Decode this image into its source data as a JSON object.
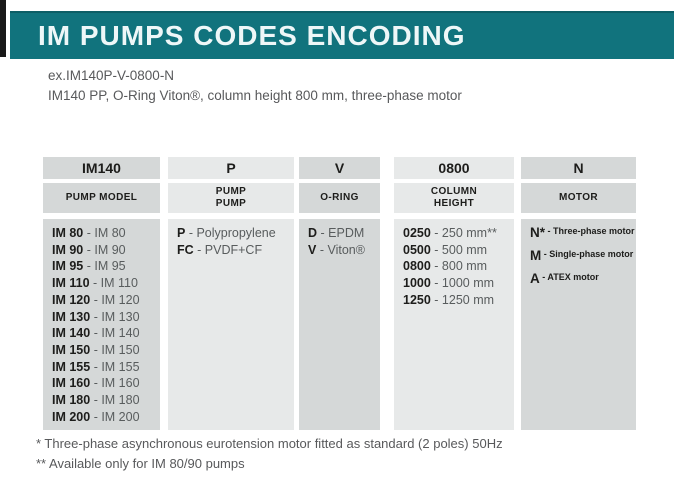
{
  "colors": {
    "banner": "#11737d",
    "banner-text": "#eef7f8",
    "col-dark": "#d5d8d8",
    "col-light": "#e7e9e9",
    "code-text": "#1d1d1b",
    "value-text": "#585c5d",
    "muted-text": "#58595b",
    "edge-bar": "#191919"
  },
  "header": {
    "title": "IM PUMPS CODES ENCODING"
  },
  "example": {
    "code": "ex.IM140P-V-0800-N",
    "description": "IM140 PP, O-Ring Viton®, column height 800 mm, three-phase motor"
  },
  "table": {
    "separator": " - ",
    "columns": [
      {
        "code": "IM140",
        "header_line1": "PUMP MODEL",
        "header_line2": "",
        "entries": [
          {
            "code": "IM 80",
            "value": "IM 80"
          },
          {
            "code": "IM 90",
            "value": "IM 90"
          },
          {
            "code": "IM 95",
            "value": "IM 95"
          },
          {
            "code": "IM 110",
            "value": "IM 110"
          },
          {
            "code": "IM 120",
            "value": "IM 120"
          },
          {
            "code": "IM 130",
            "value": "IM 130"
          },
          {
            "code": "IM 140",
            "value": "IM 140"
          },
          {
            "code": "IM 150",
            "value": "IM 150"
          },
          {
            "code": "IM 155",
            "value": "IM 155"
          },
          {
            "code": "IM 160",
            "value": "IM 160"
          },
          {
            "code": "IM 180",
            "value": "IM 180"
          },
          {
            "code": "IM 200",
            "value": "IM 200"
          }
        ]
      },
      {
        "code": "P",
        "header_line1": "PUMP",
        "header_line2": "PUMP",
        "entries": [
          {
            "code": "P",
            "value": "Polypropylene"
          },
          {
            "code": "FC",
            "value": "PVDF+CF"
          }
        ]
      },
      {
        "code": "V",
        "header_line1": "O-RING",
        "header_line2": "",
        "entries": [
          {
            "code": "D",
            "value": "EPDM"
          },
          {
            "code": "V",
            "value": "Viton®"
          }
        ]
      },
      {
        "code": "0800",
        "header_line1": "COLUMN",
        "header_line2": "HEIGHT",
        "entries": [
          {
            "code": "0250",
            "value": "250 mm**"
          },
          {
            "code": "0500",
            "value": "500 mm"
          },
          {
            "code": "0800",
            "value": "800 mm"
          },
          {
            "code": "1000",
            "value": "1000 mm"
          },
          {
            "code": "1250",
            "value": "1250 mm"
          }
        ]
      },
      {
        "code": "N",
        "header_line1": "MOTOR",
        "header_line2": "",
        "entries": [
          {
            "code": "N*",
            "value": "Three-phase motor"
          },
          {
            "code": "M",
            "value": "Single-phase motor"
          },
          {
            "code": "A",
            "value": "ATEX motor"
          }
        ]
      }
    ]
  },
  "footnotes": [
    "* Three-phase asynchronous eurotension motor fitted as standard (2 poles) 50Hz",
    "** Available only for IM 80/90 pumps"
  ]
}
